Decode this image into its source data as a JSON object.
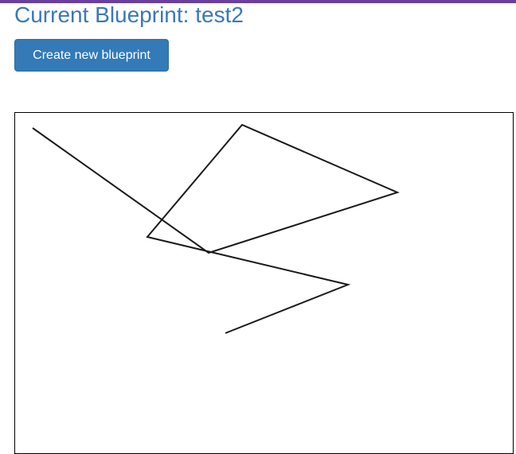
{
  "header": {
    "title": "Current Blueprint: test2",
    "accent_color": "#6b3fa0"
  },
  "actions": {
    "create_label": "Create new blueprint",
    "button_color": "#337ab7"
  },
  "blueprint": {
    "name": "test2",
    "stroke_color": "#1a1a1a"
  }
}
